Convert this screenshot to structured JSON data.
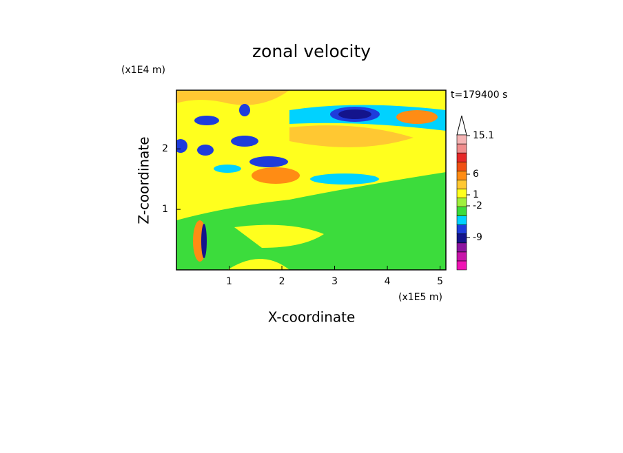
{
  "chart_data": {
    "type": "contour",
    "title": "zonal velocity",
    "x_label": "X-coordinate",
    "y_label": "Z-coordinate",
    "x_unit": "(x1E5 m)",
    "y_unit": "(x1E4 m)",
    "time_label": "t=179400 s",
    "xlim": [
      0,
      5.11
    ],
    "ylim": [
      0,
      2.97
    ],
    "xticks": [
      1,
      2,
      3,
      4,
      5
    ],
    "yticks": [
      1,
      2
    ],
    "colorbar": {
      "colors": [
        "#f014b4",
        "#c814aa",
        "#8c14a0",
        "#14148c",
        "#1e3cdc",
        "#00d2ff",
        "#3cdc3c",
        "#a0f03c",
        "#ffff1e",
        "#ffc832",
        "#ff8c14",
        "#f05014",
        "#e62828",
        "#f08c8c",
        "#f5b4b4"
      ],
      "ticks": [
        15.1,
        6,
        1,
        -2,
        -9
      ]
    }
  }
}
